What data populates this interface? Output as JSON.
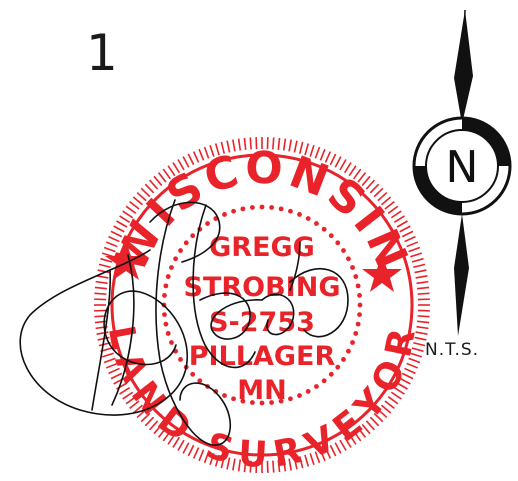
{
  "sheet": {
    "number": "1"
  },
  "north_arrow": {
    "letter": "N",
    "scale_note": "N.T.S."
  },
  "seal": {
    "state": "WISCONSIN",
    "name_line1": "GREGG",
    "name_line2": "STROBING",
    "license": "S-2753",
    "city": "PILLAGER",
    "state_abbr": "MN",
    "profession": "LAND SURVEYOR",
    "color": "#e8232a"
  },
  "signature": {
    "ink_color": "#111111"
  }
}
